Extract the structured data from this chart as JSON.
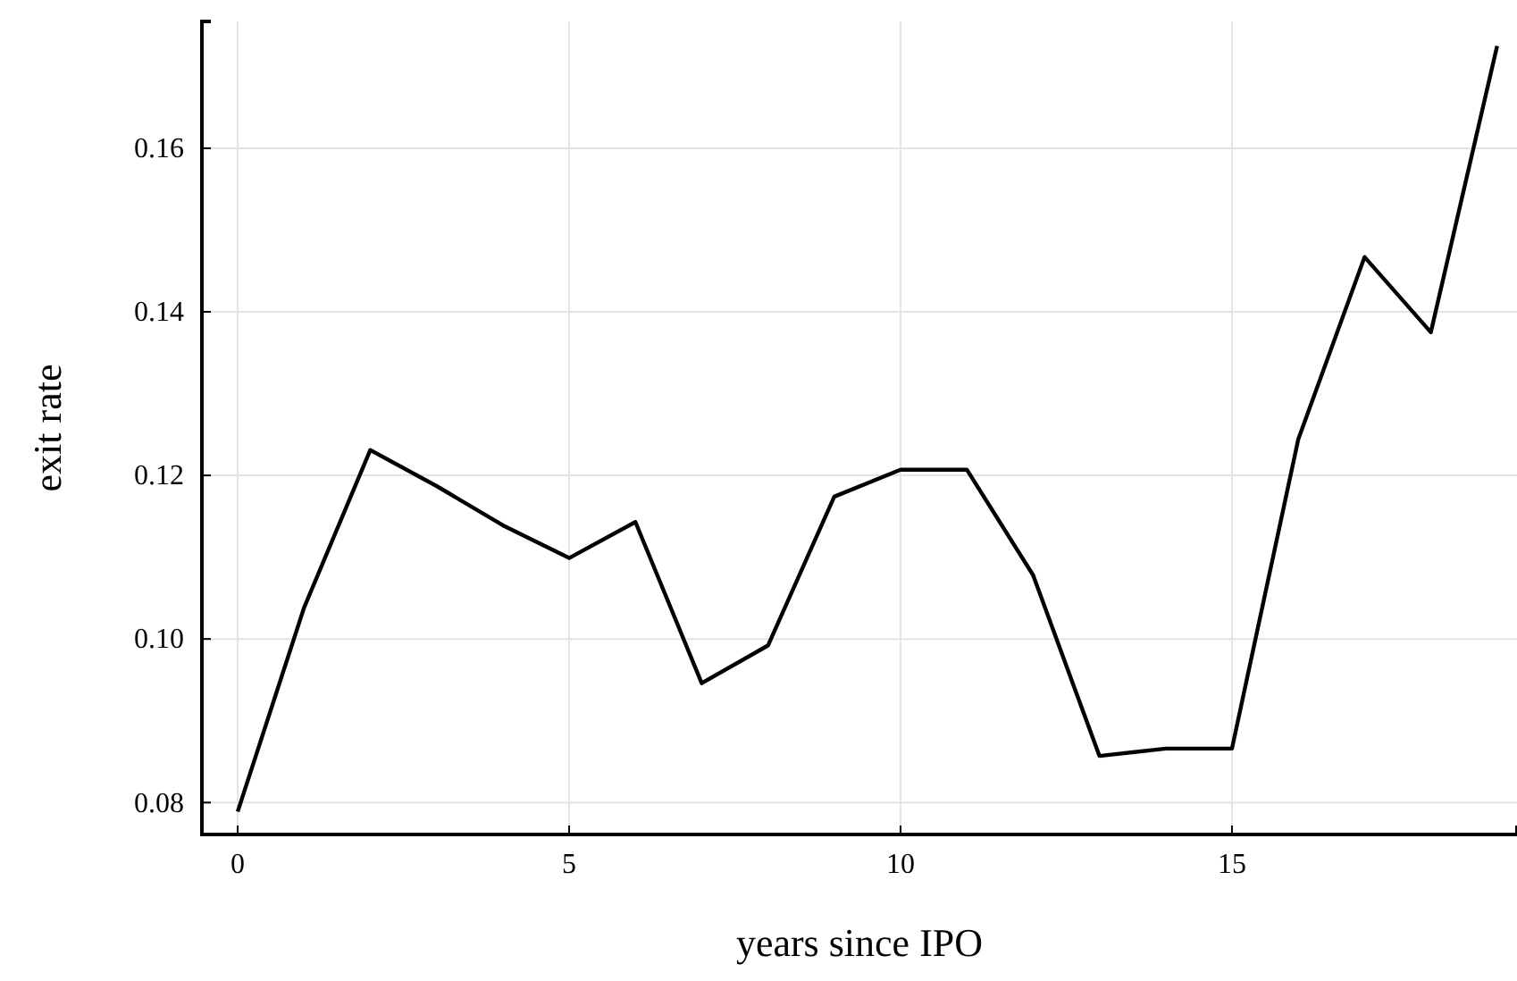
{
  "chart_data": {
    "type": "line",
    "xlabel": "years since IPO",
    "ylabel": "exit rate",
    "x": [
      0,
      1,
      2,
      3,
      4,
      5,
      6,
      7,
      8,
      9,
      10,
      11,
      12,
      13,
      14,
      15,
      16,
      17,
      18,
      19
    ],
    "series": [
      {
        "color": "#000000",
        "values": [
          0.0789,
          0.1038,
          0.1231,
          0.1187,
          0.1139,
          0.1099,
          0.1143,
          0.0946,
          0.0992,
          0.1174,
          0.1207,
          0.1207,
          0.1078,
          0.0857,
          0.0866,
          0.0866,
          0.1244,
          0.1467,
          0.1375,
          0.1725
        ]
      }
    ],
    "xlim": [
      -0.54,
      19.3
    ],
    "ylim": [
      0.0761,
      0.1755
    ],
    "xticks": [
      0,
      5,
      10,
      15
    ],
    "yticks": [
      {
        "value": 0.08,
        "label": "0.08"
      },
      {
        "value": 0.1,
        "label": "0.10"
      },
      {
        "value": 0.12,
        "label": "0.12"
      },
      {
        "value": 0.14,
        "label": "0.14"
      },
      {
        "value": 0.16,
        "label": "0.16"
      }
    ],
    "grid": true,
    "marker": "none",
    "line_style": "solid"
  }
}
